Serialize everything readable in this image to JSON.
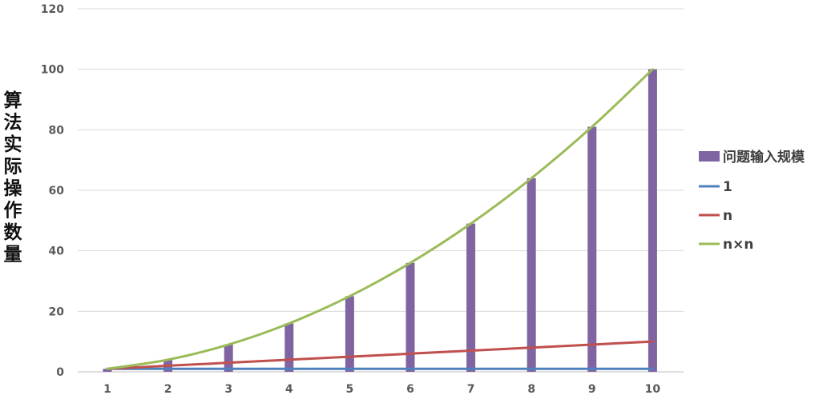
{
  "chart_data": {
    "type": "bar",
    "title": "",
    "xlabel": "",
    "ylabel": "算法实际操作数量",
    "categories": [
      "1",
      "2",
      "3",
      "4",
      "5",
      "6",
      "7",
      "8",
      "9",
      "10"
    ],
    "ylim": [
      0,
      120
    ],
    "yticks": [
      "0",
      "20",
      "40",
      "60",
      "80",
      "100",
      "120"
    ],
    "grid": true,
    "legend_position": "right",
    "series": [
      {
        "name": "问题输入规模",
        "kind": "bar",
        "color": "#8064a2",
        "values": [
          1,
          4,
          9,
          16,
          25,
          36,
          49,
          64,
          81,
          100
        ]
      },
      {
        "name": "1",
        "kind": "line",
        "color": "#4f81bd",
        "values": [
          1,
          1,
          1,
          1,
          1,
          1,
          1,
          1,
          1,
          1
        ]
      },
      {
        "name": "n",
        "kind": "line",
        "color": "#c0504d",
        "values": [
          1,
          2,
          3,
          4,
          5,
          6,
          7,
          8,
          9,
          10
        ]
      },
      {
        "name": "n×n",
        "kind": "line",
        "color": "#9bbb59",
        "values": [
          1,
          4,
          9,
          16,
          25,
          36,
          49,
          64,
          81,
          100
        ]
      }
    ]
  }
}
